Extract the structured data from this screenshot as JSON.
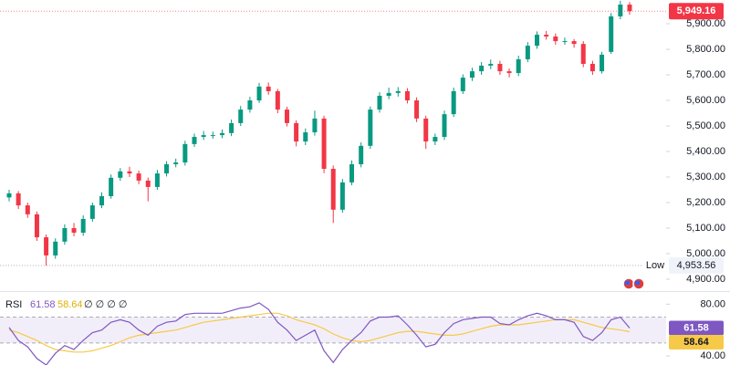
{
  "chart_data": [
    {
      "type": "candlestick",
      "open": [
        5220,
        5236,
        5189,
        5154,
        5064,
        4993,
        5047,
        5100,
        5082,
        5136,
        5189,
        5225,
        5297,
        5322,
        5314,
        5286,
        5261,
        5314,
        5350,
        5357,
        5429,
        5457,
        5464,
        5464,
        5472,
        5511,
        5564,
        5600,
        5654,
        5636,
        5564,
        5511,
        5439,
        5475,
        5529,
        5332,
        5172,
        5279,
        5350,
        5422,
        5564,
        5618,
        5629,
        5636,
        5600,
        5529,
        5439,
        5457,
        5546,
        5636,
        5689,
        5714,
        5736,
        5743,
        5714,
        5707,
        5761,
        5814,
        5857,
        5850,
        5832,
        5832,
        5821,
        5743,
        5714,
        5790,
        5929,
        5975
      ],
      "high": [
        5250,
        5245,
        5200,
        5165,
        5075,
        5060,
        5115,
        5120,
        5150,
        5200,
        5240,
        5310,
        5335,
        5340,
        5325,
        5298,
        5328,
        5362,
        5372,
        5442,
        5470,
        5480,
        5478,
        5486,
        5525,
        5578,
        5614,
        5668,
        5670,
        5645,
        5575,
        5522,
        5490,
        5560,
        5540,
        5345,
        5292,
        5365,
        5436,
        5576,
        5632,
        5650,
        5652,
        5648,
        5612,
        5540,
        5470,
        5560,
        5650,
        5702,
        5728,
        5750,
        5760,
        5755,
        5725,
        5775,
        5828,
        5870,
        5872,
        5862,
        5846,
        5840,
        5832,
        5755,
        5790,
        5942,
        5990,
        5985
      ],
      "low": [
        5205,
        5175,
        5140,
        5050,
        4953.56,
        4980,
        5035,
        5068,
        5070,
        5125,
        5178,
        5215,
        5285,
        5300,
        5272,
        5205,
        5250,
        5302,
        5338,
        5345,
        5418,
        5445,
        5450,
        5452,
        5460,
        5500,
        5552,
        5590,
        5622,
        5550,
        5498,
        5420,
        5425,
        5462,
        5315,
        5120,
        5160,
        5268,
        5338,
        5410,
        5552,
        5605,
        5615,
        5588,
        5515,
        5410,
        5425,
        5445,
        5535,
        5625,
        5676,
        5700,
        5722,
        5700,
        5690,
        5695,
        5750,
        5802,
        5838,
        5818,
        5818,
        5806,
        5730,
        5700,
        5705,
        5782,
        5918,
        5936
      ],
      "close": [
        5236,
        5189,
        5154,
        5064,
        4993,
        5047,
        5100,
        5082,
        5136,
        5189,
        5225,
        5297,
        5322,
        5314,
        5286,
        5261,
        5314,
        5350,
        5357,
        5429,
        5457,
        5464,
        5464,
        5472,
        5511,
        5564,
        5600,
        5654,
        5636,
        5564,
        5511,
        5439,
        5475,
        5529,
        5332,
        5172,
        5279,
        5350,
        5422,
        5564,
        5618,
        5629,
        5636,
        5600,
        5529,
        5439,
        5457,
        5546,
        5636,
        5689,
        5714,
        5736,
        5743,
        5714,
        5707,
        5761,
        5814,
        5857,
        5850,
        5832,
        5832,
        5821,
        5743,
        5714,
        5779,
        5929,
        5975,
        5949.16
      ],
      "up_color": "#089981",
      "down_color": "#f23645",
      "ylim": [
        4857,
        5993
      ],
      "yticks": [
        {
          "value": 4900,
          "label": "4,900.00"
        },
        {
          "value": 5000,
          "label": "5,000.00"
        },
        {
          "value": 5100,
          "label": "5,100.00"
        },
        {
          "value": 5200,
          "label": "5,200.00"
        },
        {
          "value": 5300,
          "label": "5,300.00"
        },
        {
          "value": 5400,
          "label": "5,400.00"
        },
        {
          "value": 5500,
          "label": "5,500.00"
        },
        {
          "value": 5600,
          "label": "5,600.00"
        },
        {
          "value": 5700,
          "label": "5,700.00"
        },
        {
          "value": 5800,
          "label": "5,800.00"
        },
        {
          "value": 5900,
          "label": "5,900.00"
        }
      ],
      "price_line": {
        "value": 5949.16,
        "label": "5,949.16"
      },
      "low_line": {
        "name": "Low",
        "value": 4953.56,
        "label": "4,953.56"
      }
    },
    {
      "type": "line",
      "title": "RSI",
      "legend_extra": "∅ ∅ ∅ ∅",
      "series": [
        {
          "color": "#7e57c2",
          "values": [
            62,
            52,
            47,
            38,
            33,
            42,
            48,
            45,
            52,
            58,
            60,
            66,
            68,
            66,
            60,
            56,
            63,
            66,
            67,
            72,
            73,
            73,
            73,
            73,
            75,
            77,
            78,
            81,
            76,
            66,
            60,
            52,
            56,
            60,
            44,
            35,
            45,
            52,
            58,
            67,
            70,
            70,
            71,
            64,
            56,
            47,
            49,
            58,
            65,
            68,
            69,
            70,
            70,
            65,
            64,
            68,
            71,
            73,
            71,
            68,
            68,
            66,
            55,
            52,
            58,
            68,
            70,
            61.58
          ]
        },
        {
          "color": "#f7c948",
          "values": [
            60,
            58,
            55,
            52,
            48,
            45,
            44,
            43,
            43,
            44,
            46,
            48,
            51,
            54,
            56,
            57,
            58,
            59,
            60,
            62,
            64,
            66,
            67,
            68,
            69,
            70,
            71,
            72,
            73,
            73,
            71,
            68,
            66,
            64,
            61,
            57,
            54,
            52,
            51,
            52,
            54,
            56,
            58,
            59,
            59,
            58,
            57,
            56,
            56,
            57,
            59,
            61,
            63,
            64,
            64,
            64,
            65,
            66,
            67,
            68,
            68,
            68,
            66,
            64,
            62,
            61,
            60,
            58.64
          ]
        }
      ],
      "band": [
        50,
        70
      ],
      "ylim": [
        33,
        88
      ],
      "yticks": [
        {
          "value": 40,
          "label": "40.00"
        },
        {
          "value": 80,
          "label": "80.00"
        }
      ]
    }
  ]
}
